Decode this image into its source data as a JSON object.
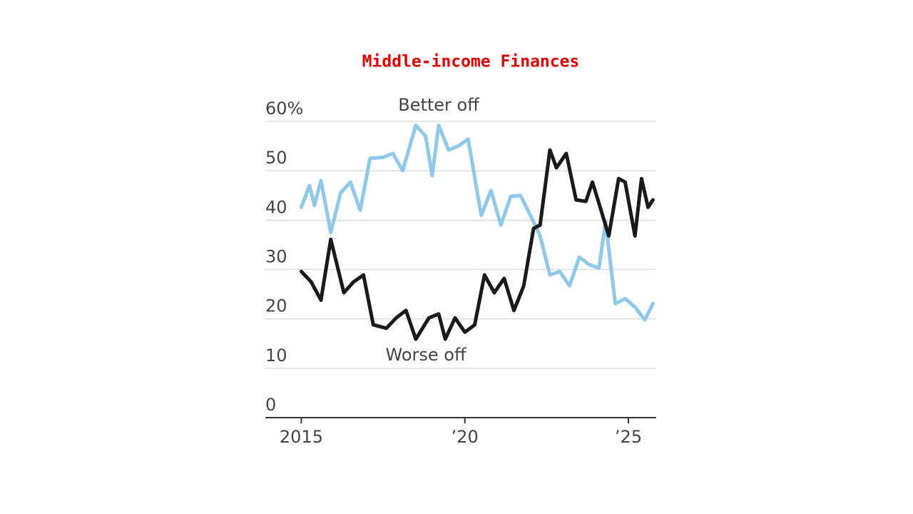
{
  "chart_data": {
    "type": "line",
    "title": "Middle-income Finances",
    "xlim": [
      2013.9,
      2025.85
    ],
    "ylim": [
      0,
      60
    ],
    "xticks": [
      2015,
      {
        "value": 2020,
        "label": "’20"
      },
      {
        "value": 2025,
        "label": "’25"
      }
    ],
    "yticks": [
      0,
      10,
      20,
      30,
      40,
      50,
      {
        "value": 60,
        "label": "60%"
      }
    ],
    "grid": true,
    "series": [
      {
        "name": "Better off",
        "color": "#8fc8e8",
        "x": [
          2015.0,
          2015.25,
          2015.4,
          2015.6,
          2015.9,
          2016.2,
          2016.5,
          2016.8,
          2017.1,
          2017.5,
          2017.8,
          2018.1,
          2018.5,
          2018.8,
          2019.0,
          2019.2,
          2019.5,
          2019.8,
          2020.1,
          2020.5,
          2020.8,
          2021.1,
          2021.4,
          2021.7,
          2022.0,
          2022.3,
          2022.6,
          2022.9,
          2023.2,
          2023.5,
          2023.8,
          2024.1,
          2024.3,
          2024.6,
          2024.9,
          2025.2,
          2025.5,
          2025.75
        ],
        "values": [
          42.6,
          47,
          43,
          48,
          37.5,
          45.5,
          47.7,
          42,
          52.5,
          52.7,
          53.5,
          50,
          59.2,
          57,
          49,
          59.2,
          54.2,
          55,
          56.4,
          41,
          46,
          39,
          44.8,
          45,
          41,
          36.8,
          28.9,
          29.6,
          26.7,
          32.5,
          31,
          30.3,
          39.7,
          23.1,
          24.1,
          22.4,
          19.8,
          23.1
        ]
      },
      {
        "name": "Worse off",
        "color": "#1a1a1a",
        "x": [
          2015.0,
          2015.3,
          2015.6,
          2015.9,
          2016.3,
          2016.6,
          2016.9,
          2017.2,
          2017.6,
          2017.9,
          2018.2,
          2018.5,
          2018.9,
          2019.2,
          2019.4,
          2019.7,
          2020.0,
          2020.3,
          2020.6,
          2020.9,
          2021.2,
          2021.5,
          2021.8,
          2022.1,
          2022.3,
          2022.6,
          2022.8,
          2023.1,
          2023.4,
          2023.7,
          2023.9,
          2024.1,
          2024.4,
          2024.7,
          2024.9,
          2025.2,
          2025.4,
          2025.6,
          2025.75
        ],
        "values": [
          29.6,
          27.5,
          23.8,
          36.1,
          25.3,
          27.5,
          28.9,
          18.8,
          18.1,
          20.2,
          21.7,
          15.9,
          20.2,
          21,
          15.9,
          20.2,
          17.3,
          18.8,
          28.9,
          25.3,
          28.2,
          21.7,
          26.7,
          38.3,
          39,
          54.2,
          50.6,
          53.5,
          44.1,
          43.8,
          47.7,
          43.4,
          36.8,
          48.4,
          47.7,
          36.8,
          48.4,
          42.6,
          44.1
        ]
      }
    ]
  }
}
